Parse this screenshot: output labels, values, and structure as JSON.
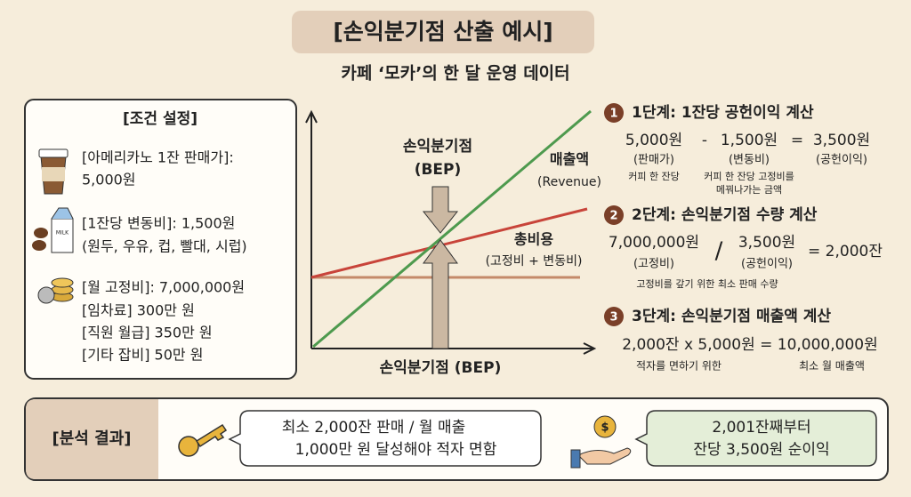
{
  "header": {
    "title": "[손익분기점 산출 예시]",
    "subtitle": "카페 ‘모카’의 한 달 운영 데이터"
  },
  "conditions": {
    "title": "[조건 설정]",
    "items": [
      {
        "lines": [
          "[아메리카노 1잔 판매가]:",
          "5,000원"
        ]
      },
      {
        "icon_text": "MILK",
        "lines": [
          "[1잔당 변동비]: 1,500원",
          "(원두, 우유, 컵, 빨대, 시럽)"
        ]
      },
      {
        "lines": [
          "[월 고정비]: 7,000,000원",
          "[임차료] 300만 원",
          "[직원 월급] 350만 원",
          "[기타 잡비] 50만 원"
        ]
      }
    ]
  },
  "chart": {
    "bep_label": [
      "손익분기점",
      "(BEP)"
    ],
    "revenue_label": [
      "매출액",
      "(Revenue)"
    ],
    "cost_label": [
      "총비용",
      "(고정비 + 변동비)"
    ],
    "x_label": "손익분기점 (BEP)"
  },
  "steps": [
    {
      "number": "1",
      "title": "1단계: 1잔당 공헌이익 계산",
      "terms": [
        "5,000원",
        "-",
        "1,500원",
        "=",
        "3,500원"
      ],
      "sublabels": [
        "(판매가)",
        "(변동비)",
        "(공헌이익)"
      ],
      "notes": [
        "커피 한 잔당",
        "커피 한 잔당 고정비를",
        "메꿔나가는 금액"
      ]
    },
    {
      "number": "2",
      "title": "2단계: 손익분기점 수량 계산",
      "terms": [
        "7,000,000원",
        "/",
        "3,500원",
        "= 2,000잔"
      ],
      "sublabels": [
        "(고정비)",
        "(공헌이익)"
      ],
      "notes": [
        "고정비를 갚기 위한 최소 판매 수량"
      ]
    },
    {
      "number": "3",
      "title": "3단계: 손익분기점 매출액 계산",
      "terms": [
        "2,000잔 x 5,000원 = 10,000,000원"
      ],
      "notes": [
        "적자를 면하기 위한",
        "최소 월 매출액"
      ]
    }
  ],
  "result": {
    "label": "[분석 결과]",
    "coin_symbol": "$",
    "bubbles": [
      [
        "최소 2,000잔 판매 / 월 매출",
        "1,000만 원 달성해야 적자 면함"
      ],
      [
        "2,001잔째부터",
        "잔당 3,500원 순이익"
      ]
    ]
  }
}
